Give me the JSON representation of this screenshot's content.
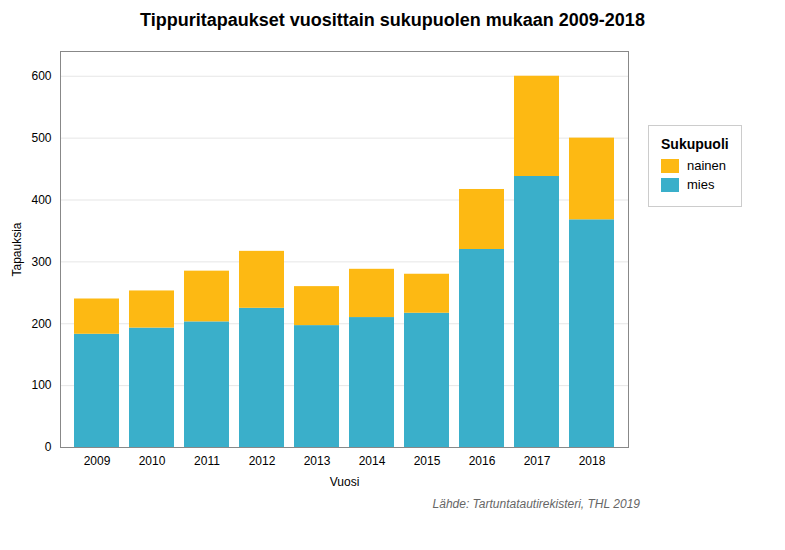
{
  "chart_data": {
    "type": "bar",
    "stacked": true,
    "title": "Tippuritapaukset vuosittain sukupuolen mukaan 2009-2018",
    "xlabel": "Vuosi",
    "ylabel": "Tapauksia",
    "legend_title": "Sukupuoli",
    "source": "Lähde: Tartuntatautirekisteri, THL 2019",
    "categories": [
      "2009",
      "2010",
      "2011",
      "2012",
      "2013",
      "2014",
      "2015",
      "2016",
      "2017",
      "2018"
    ],
    "series": [
      {
        "name": "mies",
        "color": "#3AAFCA",
        "values": [
          183,
          193,
          203,
          225,
          197,
          210,
          217,
          320,
          438,
          368
        ]
      },
      {
        "name": "nainen",
        "color": "#FDB913",
        "values": [
          57,
          60,
          82,
          92,
          63,
          78,
          63,
          97,
          162,
          132
        ]
      }
    ],
    "ylim": [
      0,
      640
    ],
    "yticks": [
      0,
      100,
      200,
      300,
      400,
      500,
      600
    ],
    "grid": true,
    "legend": "right"
  }
}
